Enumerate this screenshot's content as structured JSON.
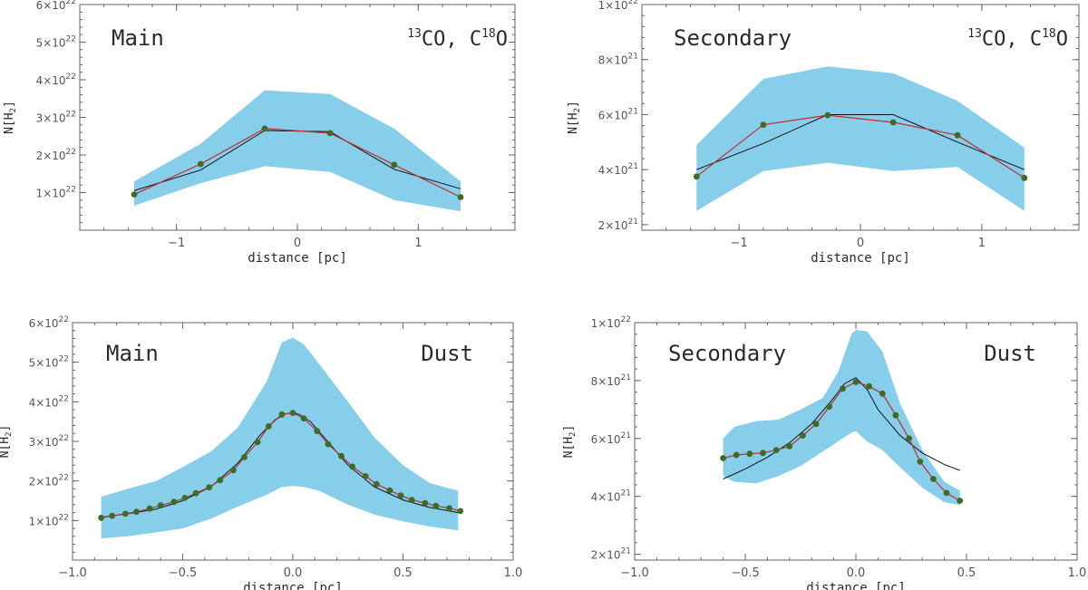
{
  "chart_data": [
    {
      "id": "p1",
      "type": "line",
      "label_left": "Main",
      "label_right": {
        "iso1_mass": "13",
        "iso1_elem": "CO, C",
        "iso2_mass": "18",
        "iso2_elem": "O"
      },
      "xlabel": "distance [pc]",
      "ylabel": "N[H",
      "ylabel_sub": "2",
      "ylabel_close": "]",
      "xlim": [
        -1.8,
        1.8
      ],
      "ylim": [
        0,
        6e+22
      ],
      "xticks": [
        -1,
        0,
        1
      ],
      "xtick_labels": [
        "−1",
        "0",
        "1"
      ],
      "yticks": [
        1e+22,
        2e+22,
        3e+22,
        4e+22,
        5e+22,
        6e+22
      ],
      "ytick_labels": [
        {
          "m": "1×10",
          "e": "22"
        },
        {
          "m": "2×10",
          "e": "22"
        },
        {
          "m": "3×10",
          "e": "22"
        },
        {
          "m": "4×10",
          "e": "22"
        },
        {
          "m": "5×10",
          "e": "22"
        },
        {
          "m": "6×10",
          "e": "22"
        }
      ],
      "band": {
        "x": [
          -1.35,
          -0.8,
          -0.27,
          0.27,
          0.8,
          1.35
        ],
        "upper": [
          1.3e+22,
          2.3e+22,
          3.72e+22,
          3.62e+22,
          2.7e+22,
          1.3e+22
        ],
        "lower": [
          6.5e+21,
          1.25e+22,
          1.7e+22,
          1.55e+22,
          8e+21,
          5e+21
        ]
      },
      "red_series": {
        "x": [
          -1.35,
          -0.8,
          -0.27,
          0.27,
          0.8,
          1.35
        ],
        "y": [
          9.5e+21,
          1.76e+22,
          2.7e+22,
          2.58e+22,
          1.74e+22,
          8.8e+21
        ]
      },
      "black_series": {
        "x": [
          -1.35,
          -0.8,
          -0.27,
          0.27,
          0.8,
          1.35
        ],
        "y": [
          1.05e+22,
          1.6e+22,
          2.65e+22,
          2.62e+22,
          1.62e+22,
          1.1e+22
        ]
      }
    },
    {
      "id": "p2",
      "type": "line",
      "label_left": "Secondary",
      "label_right": {
        "iso1_mass": "13",
        "iso1_elem": "CO, C",
        "iso2_mass": "18",
        "iso2_elem": "O"
      },
      "xlabel": "distance [pc]",
      "ylabel": "N[H",
      "ylabel_sub": "2",
      "ylabel_close": "]",
      "xlim": [
        -1.8,
        1.8
      ],
      "ylim": [
        1.8e+21,
        1e+22
      ],
      "xticks": [
        -1,
        0,
        1
      ],
      "xtick_labels": [
        "−1",
        "0",
        "1"
      ],
      "yticks": [
        2e+21,
        4e+21,
        6e+21,
        8e+21,
        1e+22
      ],
      "ytick_labels": [
        {
          "m": "2×10",
          "e": "21"
        },
        {
          "m": "4×10",
          "e": "21"
        },
        {
          "m": "6×10",
          "e": "21"
        },
        {
          "m": "8×10",
          "e": "21"
        },
        {
          "m": "1×10",
          "e": "22"
        }
      ],
      "band": {
        "x": [
          -1.35,
          -0.8,
          -0.27,
          0.27,
          0.8,
          1.35
        ],
        "upper": [
          4.9e+21,
          7.3e+21,
          7.75e+21,
          7.5e+21,
          6.5e+21,
          4.8e+21
        ],
        "lower": [
          2.5e+21,
          3.95e+21,
          4.25e+21,
          3.95e+21,
          4.1e+21,
          2.5e+21
        ]
      },
      "red_series": {
        "x": [
          -1.35,
          -0.8,
          -0.27,
          0.27,
          0.8,
          1.35
        ],
        "y": [
          3.75e+21,
          5.63e+21,
          5.98e+21,
          5.72e+21,
          5.25e+21,
          3.7e+21
        ]
      },
      "black_series": {
        "x": [
          -1.35,
          -0.8,
          -0.27,
          0.27,
          0.8,
          1.35
        ],
        "y": [
          4e+21,
          4.95e+21,
          6e+21,
          6e+21,
          5e+21,
          4e+21
        ]
      }
    },
    {
      "id": "p3",
      "type": "line",
      "label_left": "Main",
      "label_right_text": "Dust",
      "xlabel": "distance [pc]",
      "ylabel": "N[H",
      "ylabel_sub": "2",
      "ylabel_close": "]",
      "xlim": [
        -1.0,
        1.0
      ],
      "ylim": [
        0,
        6e+22
      ],
      "xticks": [
        -1.0,
        -0.5,
        0.0,
        0.5,
        1.0
      ],
      "xtick_labels": [
        "−1.0",
        "−0.5",
        "0.0",
        "0.5",
        "1.0"
      ],
      "yticks": [
        1e+22,
        2e+22,
        3e+22,
        4e+22,
        5e+22,
        6e+22
      ],
      "ytick_labels": [
        {
          "m": "1×10",
          "e": "22"
        },
        {
          "m": "2×10",
          "e": "22"
        },
        {
          "m": "3×10",
          "e": "22"
        },
        {
          "m": "4×10",
          "e": "22"
        },
        {
          "m": "5×10",
          "e": "22"
        },
        {
          "m": "6×10",
          "e": "22"
        }
      ],
      "band": {
        "x": [
          -0.87,
          -0.75,
          -0.62,
          -0.5,
          -0.37,
          -0.25,
          -0.12,
          -0.05,
          0.0,
          0.05,
          0.12,
          0.25,
          0.37,
          0.5,
          0.62,
          0.75
        ],
        "upper": [
          1.6e+22,
          1.8e+22,
          2e+22,
          2.35e+22,
          2.75e+22,
          3.35e+22,
          4.5e+22,
          5.5e+22,
          5.62e+22,
          5.45e+22,
          4.95e+22,
          4e+22,
          3.1e+22,
          2.4e+22,
          1.95e+22,
          1.75e+22
        ],
        "lower": [
          5.5e+21,
          6e+21,
          7e+21,
          8e+21,
          1.05e+22,
          1.35e+22,
          1.65e+22,
          1.85e+22,
          1.87e+22,
          1.85e+22,
          1.75e+22,
          1.4e+22,
          1.15e+22,
          9.8e+21,
          8.5e+21,
          7.5e+21
        ]
      },
      "red_series": {
        "x": [
          -0.87,
          -0.82,
          -0.76,
          -0.71,
          -0.65,
          -0.6,
          -0.54,
          -0.49,
          -0.44,
          -0.38,
          -0.33,
          -0.27,
          -0.22,
          -0.16,
          -0.11,
          -0.05,
          0.0,
          0.05,
          0.11,
          0.16,
          0.22,
          0.27,
          0.33,
          0.38,
          0.44,
          0.49,
          0.54,
          0.6,
          0.65,
          0.71,
          0.76
        ],
        "y": [
          1.07e+22,
          1.12e+22,
          1.17e+22,
          1.22e+22,
          1.3e+22,
          1.38e+22,
          1.47e+22,
          1.57e+22,
          1.69e+22,
          1.84e+22,
          2.02e+22,
          2.27e+22,
          2.6e+22,
          2.98e+22,
          3.38e+22,
          3.68e+22,
          3.72e+22,
          3.58e+22,
          3.26e+22,
          2.93e+22,
          2.63e+22,
          2.36e+22,
          2.12e+22,
          1.92e+22,
          1.76e+22,
          1.63e+22,
          1.52e+22,
          1.44e+22,
          1.37e+22,
          1.31e+22,
          1.24e+22
        ]
      },
      "black_series": {
        "x": [
          -0.87,
          -0.75,
          -0.62,
          -0.5,
          -0.37,
          -0.25,
          -0.15,
          -0.08,
          -0.03,
          0.0,
          0.03,
          0.08,
          0.15,
          0.25,
          0.37,
          0.5,
          0.62,
          0.75
        ],
        "y": [
          1.08e+22,
          1.17e+22,
          1.29e+22,
          1.5e+22,
          1.86e+22,
          2.45e+22,
          3.15e+22,
          3.55e+22,
          3.7e+22,
          3.72e+22,
          3.68e+22,
          3.5e+22,
          3.05e+22,
          2.4e+22,
          1.85e+22,
          1.52e+22,
          1.33e+22,
          1.2e+22
        ]
      }
    },
    {
      "id": "p4",
      "type": "line",
      "label_left": "Secondary",
      "label_right_text": "Dust",
      "xlabel": "distance [pc]",
      "ylabel": "N[H",
      "ylabel_sub": "2",
      "ylabel_close": "]",
      "xlim": [
        -1.0,
        1.0
      ],
      "ylim": [
        1.8e+21,
        1e+22
      ],
      "xticks": [
        -1.0,
        -0.5,
        0.0,
        0.5,
        1.0
      ],
      "xtick_labels": [
        "−1.0",
        "−0.5",
        "0.0",
        "0.5",
        "1.0"
      ],
      "yticks": [
        2e+21,
        4e+21,
        6e+21,
        8e+21,
        1e+22
      ],
      "ytick_labels": [
        {
          "m": "2×10",
          "e": "21"
        },
        {
          "m": "4×10",
          "e": "21"
        },
        {
          "m": "6×10",
          "e": "21"
        },
        {
          "m": "8×10",
          "e": "21"
        },
        {
          "m": "1×10",
          "e": "22"
        }
      ],
      "band": {
        "x": [
          -0.6,
          -0.55,
          -0.45,
          -0.35,
          -0.25,
          -0.15,
          -0.08,
          -0.02,
          0.0,
          0.05,
          0.12,
          0.2,
          0.3,
          0.4,
          0.47
        ],
        "upper": [
          6e+21,
          6.4e+21,
          6.6e+21,
          6.65e+21,
          7e+21,
          7.4e+21,
          8.3e+21,
          9.6e+21,
          9.75e+21,
          9.7e+21,
          9e+21,
          7.2e+21,
          5.6e+21,
          4.5e+21,
          4.2e+21
        ],
        "lower": [
          4.7e+21,
          4.5e+21,
          4.45e+21,
          4.7e+21,
          5.05e+21,
          5.55e+21,
          5.9e+21,
          6.2e+21,
          6.25e+21,
          5.9e+21,
          5.6e+21,
          5e+21,
          4.3e+21,
          3.8e+21,
          3.7e+21
        ]
      },
      "red_series": {
        "x": [
          -0.6,
          -0.54,
          -0.48,
          -0.42,
          -0.36,
          -0.3,
          -0.24,
          -0.18,
          -0.12,
          -0.06,
          0.0,
          0.06,
          0.12,
          0.18,
          0.24,
          0.29,
          0.35,
          0.41,
          0.47
        ],
        "y": [
          5.32e+21,
          5.43e+21,
          5.47e+21,
          5.5e+21,
          5.6e+21,
          5.73e+21,
          6.1e+21,
          6.5e+21,
          7.1e+21,
          7.72e+21,
          7.95e+21,
          7.8e+21,
          7.55e+21,
          6.8e+21,
          6e+21,
          5.2e+21,
          4.6e+21,
          4.12e+21,
          3.85e+21
        ]
      },
      "black_series": {
        "x": [
          -0.6,
          -0.5,
          -0.4,
          -0.3,
          -0.2,
          -0.1,
          -0.05,
          0.0,
          0.05,
          0.1,
          0.2,
          0.3,
          0.4,
          0.47
        ],
        "y": [
          4.6e+21,
          4.95e+21,
          5.35e+21,
          5.85e+21,
          6.5e+21,
          7.4e+21,
          7.9e+21,
          8.1e+21,
          7.7e+21,
          7e+21,
          6.1e+21,
          5.5e+21,
          5.1e+21,
          4.9e+21
        ]
      }
    }
  ],
  "colors": {
    "band": "#87ceeb",
    "red_line": "#c42b2b",
    "black_line": "#111111",
    "marker": "#3f6b24",
    "axis": "#666666"
  }
}
